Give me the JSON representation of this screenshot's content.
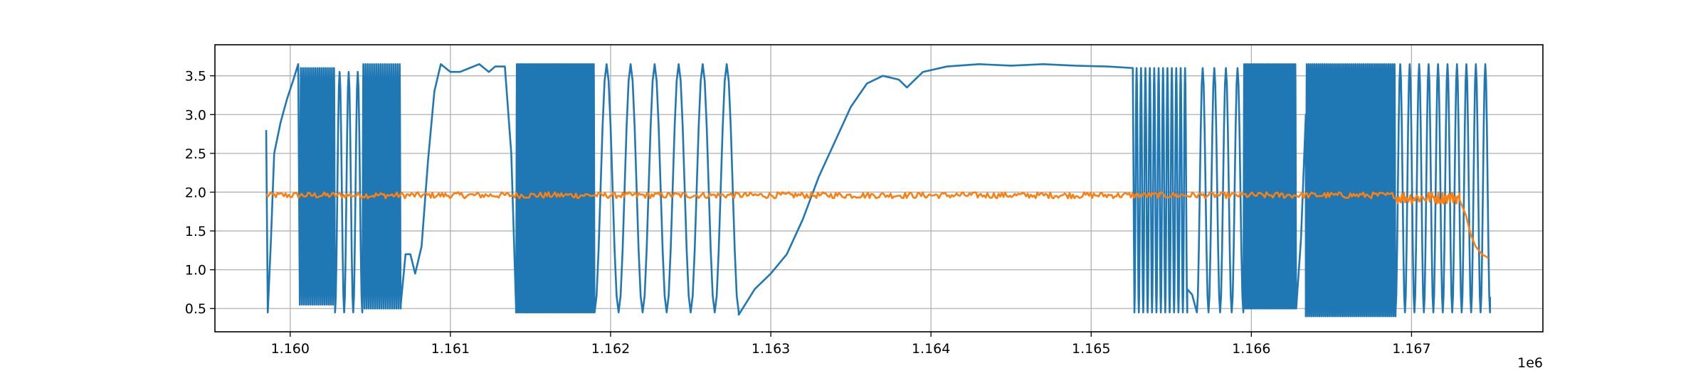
{
  "chart_data": {
    "type": "line",
    "title": "",
    "xlabel": "",
    "ylabel": "",
    "x_offset_label": "1e6",
    "xlim": [
      1.15953,
      1.16782
    ],
    "ylim": [
      0.2,
      3.9
    ],
    "x_ticks": [
      1.16,
      1.161,
      1.162,
      1.163,
      1.164,
      1.165,
      1.166,
      1.167
    ],
    "x_tick_labels": [
      "1.160",
      "1.161",
      "1.162",
      "1.163",
      "1.164",
      "1.165",
      "1.166",
      "1.167"
    ],
    "y_ticks": [
      0.5,
      1.0,
      1.5,
      2.0,
      2.5,
      3.0,
      3.5
    ],
    "y_tick_labels": [
      "0.5",
      "1.0",
      "1.5",
      "2.0",
      "2.5",
      "3.0",
      "3.5"
    ],
    "grid": true,
    "legend": "none",
    "series": [
      {
        "color": "#1f77b4",
        "segments": [
          {
            "kind": "points",
            "points": [
              [
                1.15985,
                2.8
              ],
              [
                1.15986,
                0.45
              ],
              [
                1.15988,
                1.4
              ],
              [
                1.1599,
                2.5
              ],
              [
                1.15994,
                2.9
              ],
              [
                1.15998,
                3.2
              ],
              [
                1.16002,
                3.45
              ],
              [
                1.16005,
                3.65
              ]
            ]
          },
          {
            "kind": "osc",
            "x0": 1.16006,
            "x1": 1.16028,
            "lo": 0.55,
            "hi": 3.6,
            "n": 17
          },
          {
            "kind": "osc",
            "x0": 1.16028,
            "x1": 1.16045,
            "lo": 0.45,
            "hi": 3.55,
            "n": 3
          },
          {
            "kind": "osc",
            "x0": 1.16045,
            "x1": 1.16069,
            "lo": 0.5,
            "hi": 3.65,
            "n": 18
          },
          {
            "kind": "points",
            "points": [
              [
                1.16069,
                0.55
              ],
              [
                1.16072,
                1.2
              ],
              [
                1.16075,
                1.2
              ],
              [
                1.16078,
                0.95
              ],
              [
                1.16082,
                1.3
              ],
              [
                1.16086,
                2.4
              ],
              [
                1.1609,
                3.3
              ],
              [
                1.16094,
                3.65
              ],
              [
                1.161,
                3.55
              ],
              [
                1.16106,
                3.55
              ],
              [
                1.16112,
                3.6
              ],
              [
                1.16118,
                3.65
              ],
              [
                1.16124,
                3.55
              ],
              [
                1.16128,
                3.62
              ],
              [
                1.16134,
                3.62
              ],
              [
                1.16138,
                2.5
              ],
              [
                1.16141,
                0.5
              ]
            ]
          },
          {
            "kind": "osc",
            "x0": 1.16141,
            "x1": 1.1619,
            "lo": 0.45,
            "hi": 3.65,
            "n": 48
          },
          {
            "kind": "osc",
            "x0": 1.1619,
            "x1": 1.1628,
            "lo": 0.45,
            "hi": 3.65,
            "n": 6
          },
          {
            "kind": "points",
            "points": [
              [
                1.1628,
                0.42
              ],
              [
                1.1629,
                0.75
              ],
              [
                1.163,
                0.95
              ],
              [
                1.1631,
                1.2
              ],
              [
                1.1632,
                1.65
              ],
              [
                1.1633,
                2.2
              ],
              [
                1.1634,
                2.65
              ],
              [
                1.1635,
                3.1
              ],
              [
                1.1636,
                3.4
              ],
              [
                1.1637,
                3.5
              ],
              [
                1.1638,
                3.45
              ],
              [
                1.16385,
                3.35
              ],
              [
                1.16395,
                3.55
              ],
              [
                1.1641,
                3.62
              ],
              [
                1.1643,
                3.65
              ],
              [
                1.1645,
                3.63
              ],
              [
                1.1647,
                3.65
              ],
              [
                1.1649,
                3.63
              ],
              [
                1.1651,
                3.62
              ],
              [
                1.16526,
                3.6
              ]
            ]
          },
          {
            "kind": "osc",
            "x0": 1.16527,
            "x1": 1.1656,
            "lo": 0.45,
            "hi": 3.6,
            "n": 12
          },
          {
            "kind": "points",
            "points": [
              [
                1.1656,
                0.75
              ],
              [
                1.16563,
                0.68
              ],
              [
                1.16566,
                0.45
              ]
            ]
          },
          {
            "kind": "osc",
            "x0": 1.16566,
            "x1": 1.16595,
            "lo": 0.45,
            "hi": 3.6,
            "n": 4
          },
          {
            "kind": "osc",
            "x0": 1.16595,
            "x1": 1.16628,
            "lo": 0.5,
            "hi": 3.65,
            "n": 30
          },
          {
            "kind": "points",
            "points": [
              [
                1.16628,
                0.5
              ],
              [
                1.16631,
                1.4
              ],
              [
                1.16634,
                3.0
              ]
            ]
          },
          {
            "kind": "osc",
            "x0": 1.16634,
            "x1": 1.1669,
            "lo": 0.4,
            "hi": 3.65,
            "n": 46
          },
          {
            "kind": "osc",
            "x0": 1.1669,
            "x1": 1.16749,
            "lo": 0.45,
            "hi": 3.65,
            "n": 10
          },
          {
            "kind": "points",
            "points": [
              [
                1.16749,
                0.65
              ]
            ]
          }
        ]
      },
      {
        "color": "#ff7f0e",
        "segments": [
          {
            "kind": "noise",
            "x0": 1.15985,
            "x1": 1.1669,
            "center": 1.96,
            "amp": 0.04,
            "n": 700
          },
          {
            "kind": "noise",
            "x0": 1.1669,
            "x1": 1.1673,
            "center": 1.93,
            "amp": 0.08,
            "n": 60
          },
          {
            "kind": "points",
            "points": [
              [
                1.1673,
                1.9
              ],
              [
                1.16734,
                1.7
              ],
              [
                1.16737,
                1.45
              ],
              [
                1.1674,
                1.3
              ],
              [
                1.16744,
                1.2
              ],
              [
                1.16748,
                1.15
              ]
            ]
          }
        ]
      }
    ]
  }
}
